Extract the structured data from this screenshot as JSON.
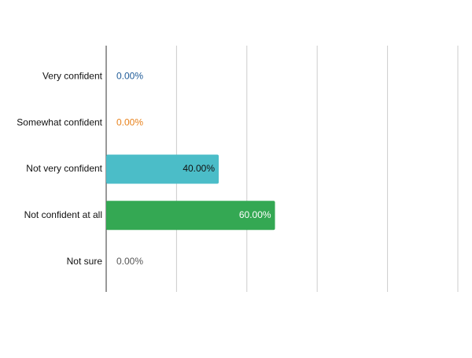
{
  "chart_data": {
    "type": "bar",
    "orientation": "horizontal",
    "categories": [
      "Very confident",
      "Somewhat confident",
      "Not very confident",
      "Not confident at all",
      "Not sure"
    ],
    "values": [
      0,
      0,
      40,
      60,
      0
    ],
    "value_labels": [
      "0.00%",
      "0.00%",
      "40.00%",
      "60.00%",
      "0.00%"
    ],
    "colors": [
      "#1f5b98",
      "#e8821c",
      "#4bbdc8",
      "#34a853",
      "#555555"
    ],
    "xlim": [
      0,
      125
    ],
    "xticks": [
      0,
      25,
      50,
      75,
      100,
      125
    ],
    "grid": true
  }
}
